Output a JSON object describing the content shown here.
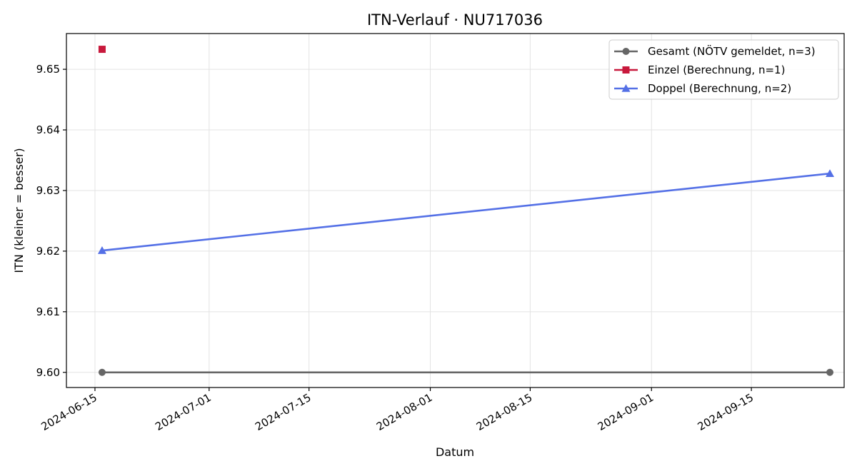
{
  "chart_data": {
    "type": "line",
    "title": "ITN-Verlauf · NU717036",
    "xlabel": "Datum",
    "ylabel": "ITN  (kleiner = besser)",
    "x_tick_labels": [
      "2024-06-15",
      "2024-07-01",
      "2024-07-15",
      "2024-08-01",
      "2024-08-15",
      "2024-09-01",
      "2024-09-15"
    ],
    "y_tick_labels": [
      "9.60",
      "9.61",
      "9.62",
      "9.63",
      "9.64",
      "9.65"
    ],
    "ylim": [
      9.5975,
      9.6559
    ],
    "xlim": [
      "2024-06-11",
      "2024-09-28"
    ],
    "grid": true,
    "legend_position": "top-right",
    "series": [
      {
        "name": "Gesamt (NÖTV gemeldet, n=3)",
        "color": "#666666",
        "marker": "circle",
        "points": [
          {
            "x": "2024-06-16",
            "y": 9.6
          },
          {
            "x": "2024-09-26",
            "y": 9.6
          }
        ]
      },
      {
        "name": "Einzel (Berechnung, n=1)",
        "color": "#c8193c",
        "marker": "square",
        "points": [
          {
            "x": "2024-06-16",
            "y": 9.6533
          }
        ]
      },
      {
        "name": "Doppel (Berechnung, n=2)",
        "color": "#5470e6",
        "marker": "triangle",
        "points": [
          {
            "x": "2024-06-16",
            "y": 9.6201
          },
          {
            "x": "2024-09-26",
            "y": 9.6328
          }
        ]
      }
    ]
  }
}
